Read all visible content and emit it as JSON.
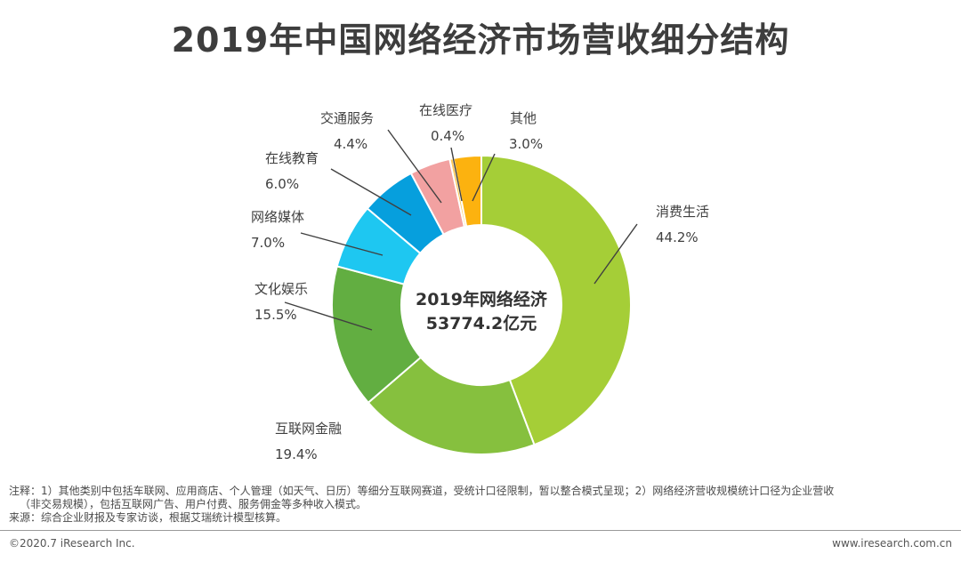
{
  "title": "2019年中国网络经济市场营收细分结构",
  "chart_data": {
    "type": "pie",
    "donut": true,
    "title": "2019年中国网络经济市场营收细分结构",
    "center_label": [
      "2019年网络经济",
      "53774.2亿元"
    ],
    "slices": [
      {
        "name": "消费生活",
        "value": 44.2,
        "label": "44.2%",
        "color": "#A5CE37"
      },
      {
        "name": "互联网金融",
        "value": 19.4,
        "label": "19.4%",
        "color": "#86C03E"
      },
      {
        "name": "文化娱乐",
        "value": 15.5,
        "label": "15.5%",
        "color": "#62AE41"
      },
      {
        "name": "网络媒体",
        "value": 7.0,
        "label": "7.0%",
        "color": "#1EC7F1"
      },
      {
        "name": "在线教育",
        "value": 6.0,
        "label": "6.0%",
        "color": "#069FDD"
      },
      {
        "name": "交通服务",
        "value": 4.4,
        "label": "4.4%",
        "color": "#F2A1A1"
      },
      {
        "name": "在线医疗",
        "value": 0.4,
        "label": "0.4%",
        "color": "#FBC95D"
      },
      {
        "name": "其他",
        "value": 3.0,
        "label": "3.0%",
        "color": "#FCB20F"
      }
    ]
  },
  "notes": {
    "line1": "注释：1）其他类别中包括车联网、应用商店、个人管理（如天气、日历）等细分互联网赛道，受统计口径限制，暂以整合模式呈现；2）网络经济营收规模统计口径为企业营收",
    "line2": "（非交易规模），包括互联网广告、用户付费、服务佣金等多种收入模式。",
    "source": "来源：综合企业财报及专家访谈，根据艾瑞统计模型核算。"
  },
  "footer": {
    "copyright": "©2020.7 iResearch Inc.",
    "website": "www.iresearch.com.cn"
  }
}
